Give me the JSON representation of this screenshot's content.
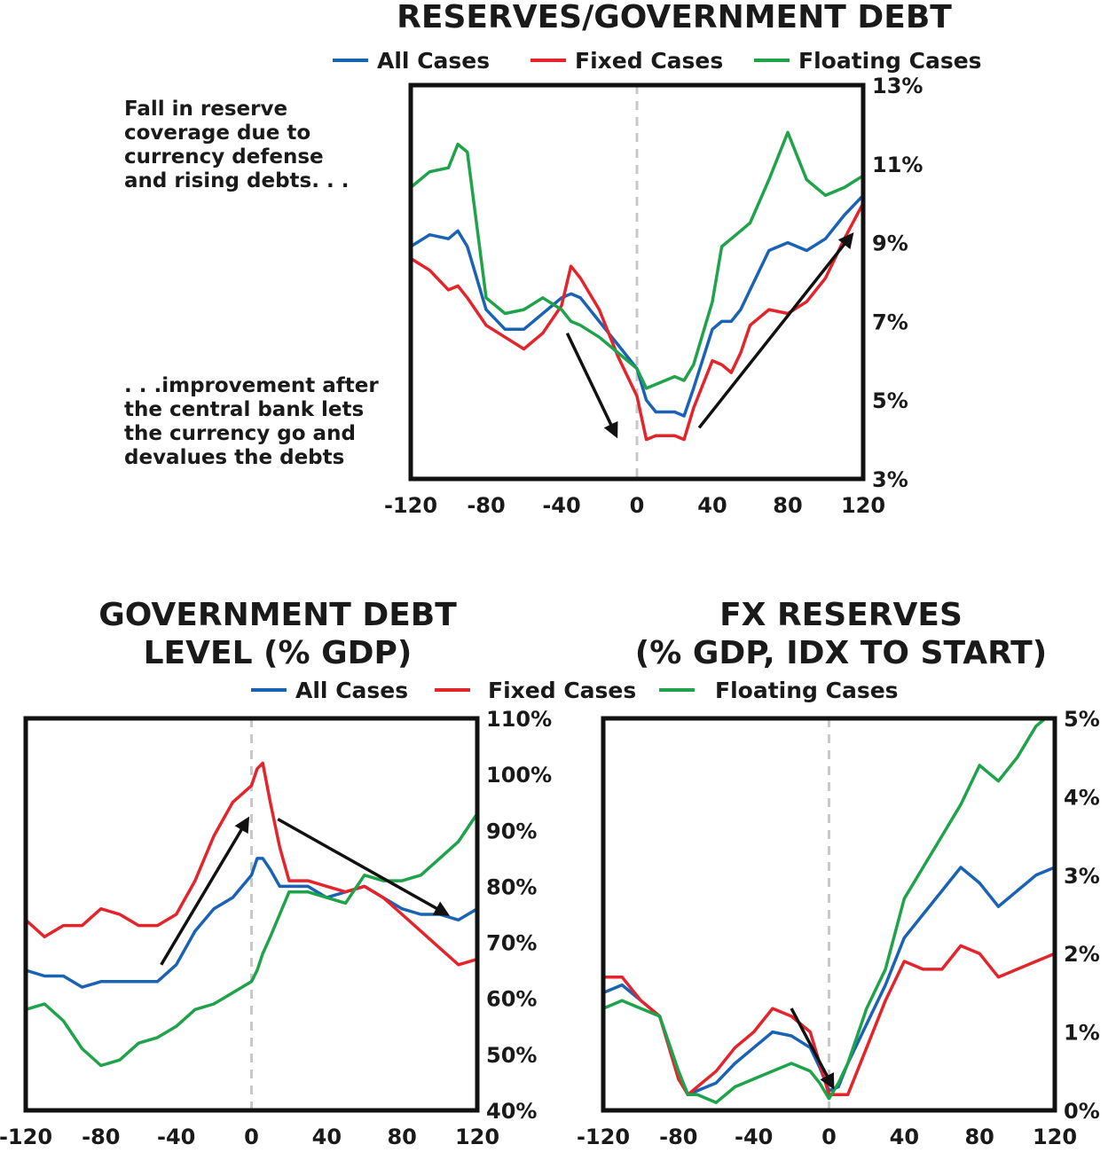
{
  "colors": {
    "all": "#1a63b4",
    "fixed": "#e3242b",
    "floating": "#1ea34a",
    "frame": "#111111",
    "zero_line": "#c8c8c8",
    "arrow": "#111111"
  },
  "legend": {
    "all": "All Cases",
    "fixed": "Fixed Cases",
    "floating": "Floating Cases"
  },
  "chart_data": [
    {
      "type": "line",
      "title": "RESERVES/GOVERNMENT DEBT",
      "xlim": [
        -120,
        120
      ],
      "ylim": [
        3,
        13
      ],
      "x_ticks": [
        "-120",
        "-80",
        "-40",
        "0",
        "40",
        "80",
        "120"
      ],
      "y_ticks": [
        "3%",
        "5%",
        "7%",
        "9%",
        "11%",
        "13%"
      ],
      "y_axis_side": "right",
      "annotations": [
        "Fall in reserve",
        "coverage due to",
        "currency defense",
        "and rising debts. . .",
        ". . .improvement after",
        "the central bank lets",
        "the currency go and",
        "devalues the debts"
      ],
      "x": [
        -120,
        -110,
        -100,
        -95,
        -90,
        -80,
        -70,
        -60,
        -50,
        -40,
        -35,
        -30,
        -20,
        -10,
        0,
        5,
        10,
        20,
        25,
        30,
        40,
        45,
        50,
        55,
        60,
        70,
        80,
        90,
        100,
        110,
        120
      ],
      "series": [
        {
          "name": "All Cases",
          "values": [
            8.9,
            9.2,
            9.1,
            9.3,
            8.9,
            7.3,
            6.8,
            6.8,
            7.2,
            7.6,
            7.7,
            7.6,
            7.0,
            6.4,
            5.8,
            5.0,
            4.7,
            4.7,
            4.6,
            5.3,
            6.8,
            7.0,
            7.0,
            7.3,
            7.8,
            8.8,
            9.0,
            8.8,
            9.1,
            9.7,
            10.2
          ]
        },
        {
          "name": "Fixed Cases",
          "values": [
            8.6,
            8.3,
            7.8,
            7.9,
            7.6,
            6.9,
            6.6,
            6.3,
            6.7,
            7.4,
            8.4,
            8.1,
            7.3,
            6.1,
            5.1,
            4.0,
            4.1,
            4.1,
            4.0,
            4.8,
            6.0,
            5.9,
            5.7,
            6.2,
            6.9,
            7.3,
            7.2,
            7.5,
            8.1,
            9.1,
            10.0
          ]
        },
        {
          "name": "Floating Cases",
          "values": [
            10.4,
            10.8,
            10.9,
            11.5,
            11.3,
            7.6,
            7.2,
            7.3,
            7.6,
            7.3,
            7.0,
            6.9,
            6.6,
            6.2,
            5.8,
            5.3,
            5.4,
            5.6,
            5.5,
            5.9,
            7.5,
            8.9,
            9.1,
            9.3,
            9.5,
            10.6,
            11.8,
            10.6,
            10.2,
            10.4,
            10.7
          ]
        }
      ]
    },
    {
      "type": "line",
      "title": "GOVERNMENT DEBT",
      "subtitle": "LEVEL (% GDP)",
      "xlim": [
        -120,
        120
      ],
      "ylim": [
        40,
        110
      ],
      "x_ticks": [
        "-120",
        "-80",
        "-40",
        "0",
        "40",
        "80",
        "120"
      ],
      "y_ticks": [
        "40%",
        "50%",
        "60%",
        "70%",
        "80%",
        "90%",
        "100%",
        "110%"
      ],
      "y_axis_side": "right",
      "x": [
        -120,
        -110,
        -100,
        -90,
        -80,
        -70,
        -60,
        -50,
        -40,
        -30,
        -20,
        -10,
        0,
        3,
        6,
        10,
        15,
        20,
        30,
        40,
        50,
        60,
        70,
        80,
        90,
        100,
        110,
        120
      ],
      "series": [
        {
          "name": "All Cases",
          "values": [
            65,
            64,
            64,
            62,
            63,
            63,
            63,
            63,
            66,
            72,
            76,
            78,
            82,
            85,
            85,
            83,
            80,
            80,
            80,
            78,
            79,
            80,
            78,
            76,
            75,
            75,
            74,
            76
          ]
        },
        {
          "name": "Fixed Cases",
          "values": [
            74,
            71,
            73,
            73,
            76,
            75,
            73,
            73,
            75,
            81,
            89,
            95,
            98,
            101,
            102,
            95,
            87,
            81,
            81,
            80,
            79,
            80,
            78,
            75,
            72,
            69,
            66,
            67
          ]
        },
        {
          "name": "Floating Cases",
          "values": [
            58,
            59,
            56,
            51,
            48,
            49,
            52,
            53,
            55,
            58,
            59,
            61,
            63,
            65,
            68,
            71,
            75,
            79,
            79,
            78,
            77,
            82,
            81,
            81,
            82,
            85,
            88,
            93
          ]
        }
      ]
    },
    {
      "type": "line",
      "title": "FX RESERVES",
      "subtitle": "(% GDP, IDX TO START)",
      "xlim": [
        -120,
        120
      ],
      "ylim": [
        0,
        5
      ],
      "x_ticks": [
        "-120",
        "-80",
        "-40",
        "0",
        "40",
        "80",
        "120"
      ],
      "y_ticks": [
        "0%",
        "1%",
        "2%",
        "3%",
        "4%",
        "5%"
      ],
      "y_axis_side": "right",
      "x": [
        -120,
        -110,
        -100,
        -90,
        -80,
        -75,
        -70,
        -60,
        -50,
        -40,
        -30,
        -20,
        -10,
        -5,
        0,
        5,
        10,
        20,
        30,
        40,
        50,
        60,
        70,
        80,
        90,
        100,
        110,
        120
      ],
      "series": [
        {
          "name": "All Cases",
          "values": [
            1.5,
            1.6,
            1.4,
            1.2,
            0.5,
            0.2,
            0.25,
            0.35,
            0.6,
            0.8,
            1.0,
            0.95,
            0.8,
            0.55,
            0.25,
            0.3,
            0.6,
            1.1,
            1.6,
            2.2,
            2.5,
            2.8,
            3.1,
            2.9,
            2.6,
            2.8,
            3.0,
            3.1
          ]
        },
        {
          "name": "Fixed Cases",
          "values": [
            1.7,
            1.7,
            1.4,
            1.2,
            0.4,
            0.2,
            0.3,
            0.5,
            0.8,
            1.0,
            1.3,
            1.2,
            1.0,
            0.6,
            0.2,
            0.2,
            0.2,
            0.8,
            1.4,
            1.9,
            1.8,
            1.8,
            2.1,
            2.0,
            1.7,
            1.8,
            1.9,
            2.0
          ]
        },
        {
          "name": "Floating Cases",
          "values": [
            1.3,
            1.4,
            1.3,
            1.2,
            0.5,
            0.2,
            0.2,
            0.1,
            0.3,
            0.4,
            0.5,
            0.6,
            0.5,
            0.35,
            0.15,
            0.35,
            0.6,
            1.3,
            1.8,
            2.7,
            3.1,
            3.5,
            3.9,
            4.4,
            4.2,
            4.5,
            4.9,
            5.1
          ]
        }
      ]
    }
  ]
}
